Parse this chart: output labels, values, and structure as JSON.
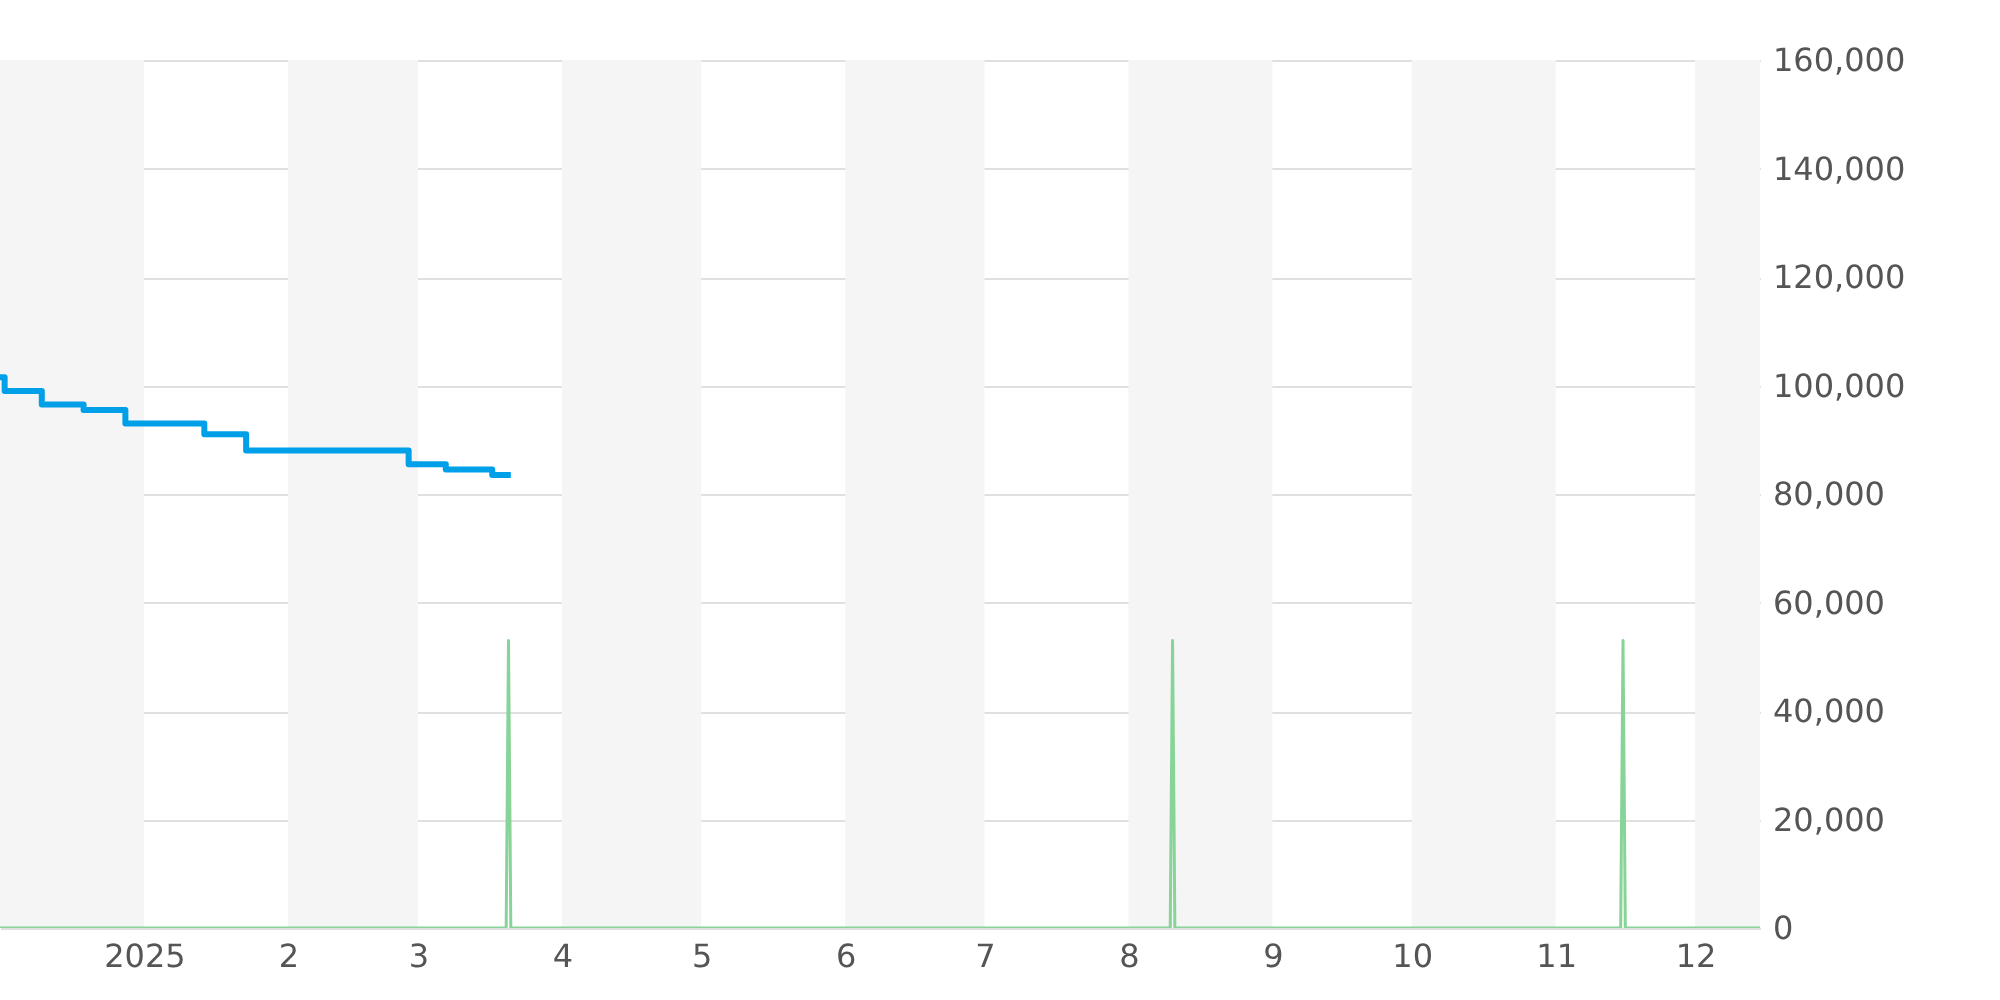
{
  "chart_data": {
    "type": "line",
    "xlim": [
      "2024-12-01",
      "2025-12-15"
    ],
    "xticks": [
      {
        "value": "2025-01-01",
        "label": "2025"
      },
      {
        "value": "2025-02-01",
        "label": "2"
      },
      {
        "value": "2025-03-01",
        "label": "3"
      },
      {
        "value": "2025-04-01",
        "label": "4"
      },
      {
        "value": "2025-05-01",
        "label": "5"
      },
      {
        "value": "2025-06-01",
        "label": "6"
      },
      {
        "value": "2025-07-01",
        "label": "7"
      },
      {
        "value": "2025-08-01",
        "label": "8"
      },
      {
        "value": "2025-09-01",
        "label": "9"
      },
      {
        "value": "2025-10-01",
        "label": "10"
      },
      {
        "value": "2025-11-01",
        "label": "11"
      },
      {
        "value": "2025-12-01",
        "label": "12"
      }
    ],
    "ylim": [
      0,
      160000
    ],
    "yticks": [
      {
        "value": 0,
        "label": "0"
      },
      {
        "value": 20000,
        "label": "20,000"
      },
      {
        "value": 40000,
        "label": "40,000"
      },
      {
        "value": 60000,
        "label": "60,000"
      },
      {
        "value": 80000,
        "label": "80,000"
      },
      {
        "value": 100000,
        "label": "100,000"
      },
      {
        "value": 120000,
        "label": "120,000"
      },
      {
        "value": 140000,
        "label": "140,000"
      },
      {
        "value": 160000,
        "label": "160,000"
      }
    ],
    "grid": "y",
    "line_style": "solid",
    "bands": [
      {
        "axis": "x",
        "from": "2024-12-01",
        "to": "2025-01-01",
        "color": "#f5f5f5"
      },
      {
        "axis": "x",
        "from": "2025-02-01",
        "to": "2025-03-01",
        "color": "#f5f5f5"
      },
      {
        "axis": "x",
        "from": "2025-04-01",
        "to": "2025-05-01",
        "color": "#f5f5f5"
      },
      {
        "axis": "x",
        "from": "2025-06-01",
        "to": "2025-07-01",
        "color": "#f5f5f5"
      },
      {
        "axis": "x",
        "from": "2025-08-01",
        "to": "2025-09-01",
        "color": "#f5f5f5"
      },
      {
        "axis": "x",
        "from": "2025-10-01",
        "to": "2025-11-01",
        "color": "#f5f5f5"
      },
      {
        "axis": "x",
        "from": "2025-12-01",
        "to": "2025-12-15",
        "color": "#f5f5f5"
      }
    ],
    "series": [
      {
        "color": "#88d498",
        "x": [
          "2024-12-01",
          "2025-03-20",
          "2025-03-20T12:00",
          "2025-03-21",
          "2025-08-10",
          "2025-08-10T12:00",
          "2025-08-11",
          "2025-11-15",
          "2025-11-15T12:00",
          "2025-11-16",
          "2025-12-15"
        ],
        "values": [
          0,
          0,
          53000,
          0,
          0,
          53000,
          0,
          0,
          53000,
          0,
          0
        ]
      },
      {
        "type": "step",
        "color": "#00a0e9",
        "x": [
          "2024-12-01",
          "2024-12-02",
          "2024-12-10",
          "2024-12-19",
          "2024-12-28",
          "2025-01-14",
          "2025-01-23",
          "2025-02-27",
          "2025-03-07",
          "2025-03-17",
          "2025-03-21"
        ],
        "values": [
          101500,
          99000,
          96500,
          95500,
          93000,
          91000,
          88000,
          85500,
          84500,
          83500,
          83500
        ]
      }
    ]
  }
}
